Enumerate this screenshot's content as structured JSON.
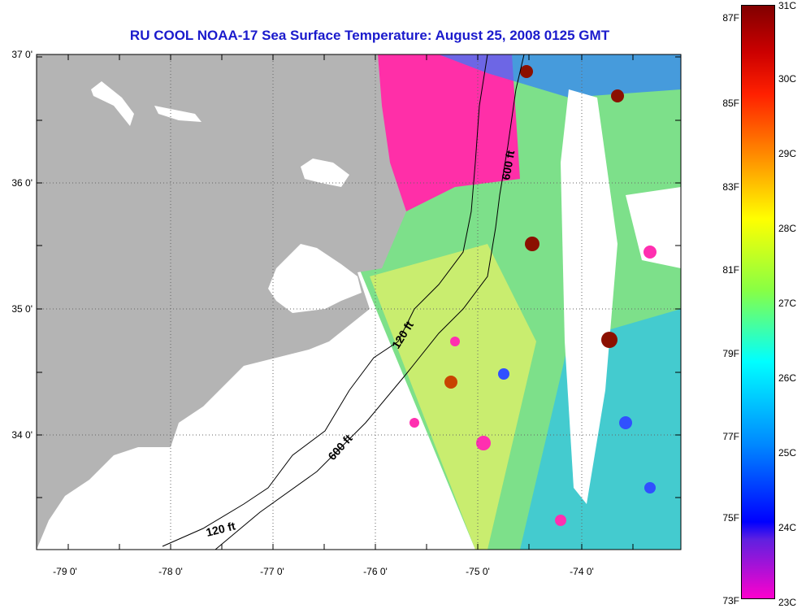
{
  "title": "RU COOL  NOAA-17  Sea Surface Temperature:  August 25, 2008 0125 GMT",
  "lat_labels": [
    "37 0'",
    "36 0'",
    "35 0'",
    "34 0'"
  ],
  "lon_labels": [
    "-79 0'",
    "-78 0'",
    "-77 0'",
    "-76 0'",
    "-75 0'",
    "-74 0'"
  ],
  "contour_labels": [
    "600 ft",
    "120 ft",
    "600 ft",
    "120 ft"
  ],
  "colorbar": {
    "fahrenheit": [
      "87F",
      "85F",
      "83F",
      "81F",
      "79F",
      "77F",
      "75F",
      "73F"
    ],
    "celsius": [
      "31C",
      "30C",
      "29C",
      "28C",
      "27C",
      "26C",
      "25C",
      "24C",
      "23C"
    ]
  },
  "colors": {
    "title": "#1a1acc",
    "land": "#b4b4b4",
    "warm": "#8b0000",
    "cool": "#ff2fb0"
  }
}
